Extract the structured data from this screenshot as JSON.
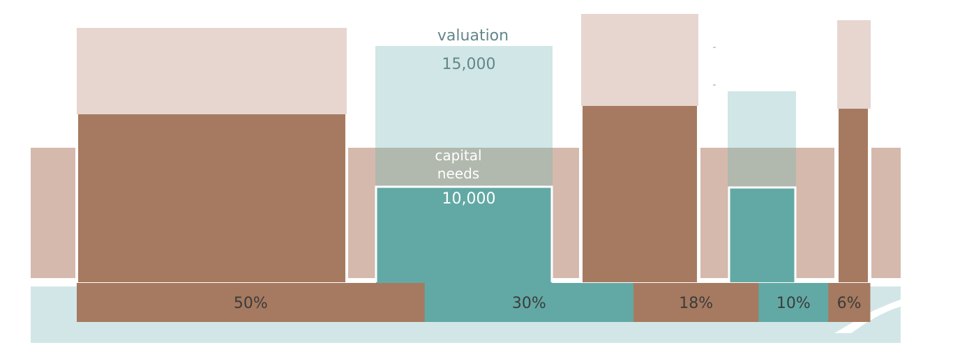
{
  "colors": {
    "brown": "#a67a60",
    "light_brown": "#e6d6cf",
    "mid_brown": "#d5b9ad",
    "teal": "#62a9a5",
    "light_teal": "#d1e6e6",
    "overlap": "#b1b8ad",
    "river": "#d3e6e7",
    "text_dark": "#3b3b3b",
    "text_teal": "#63868a",
    "text_white": "#ffffff"
  },
  "labels": {
    "valuation_title": "valuation",
    "valuation_value": "15,000",
    "capital_title_line1": "capital",
    "capital_title_line2": "needs",
    "capital_value": "10,000"
  },
  "segments": [
    {
      "pct": 50,
      "label": "50%",
      "kind": "brown"
    },
    {
      "pct": 30,
      "label": "30%",
      "kind": "teal"
    },
    {
      "pct": 18,
      "label": "18%",
      "kind": "brown"
    },
    {
      "pct": 10,
      "label": "10%",
      "kind": "teal"
    },
    {
      "pct": 6,
      "label": "6%",
      "kind": "brown"
    }
  ]
}
